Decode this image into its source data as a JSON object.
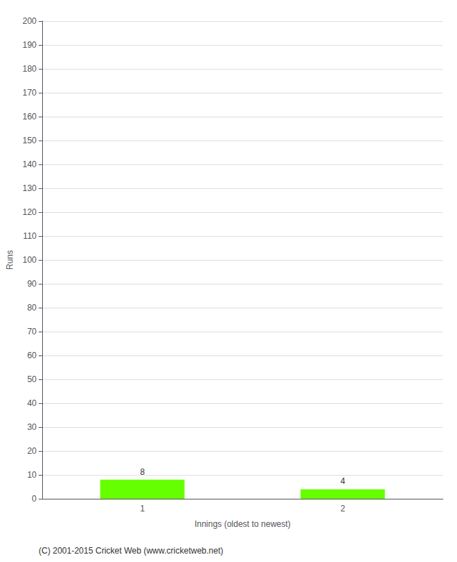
{
  "chart_data": {
    "type": "bar",
    "xlabel": "Innings (oldest to newest)",
    "ylabel": "Runs",
    "categories": [
      "1",
      "2"
    ],
    "values": [
      8,
      4
    ],
    "color": "#66ff00",
    "ylim": [
      0,
      200
    ],
    "yticks": [
      0,
      10,
      20,
      30,
      40,
      50,
      60,
      70,
      80,
      90,
      100,
      110,
      120,
      130,
      140,
      150,
      160,
      170,
      180,
      190,
      200
    ],
    "grid": true,
    "data_labels": true,
    "annotations": [
      "(C) 2001-2015 Cricket Web (www.cricketweb.net)"
    ]
  }
}
